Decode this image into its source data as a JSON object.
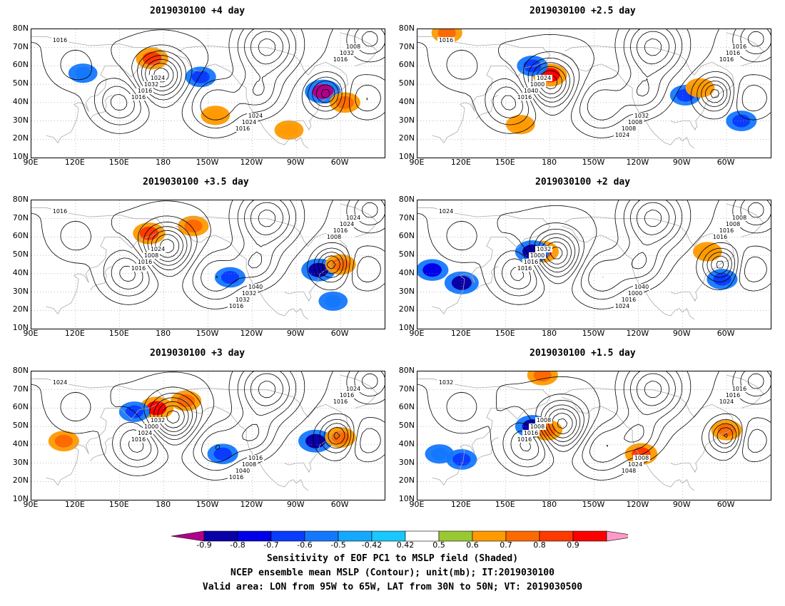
{
  "panels": [
    {
      "title": "2019030100 +4 day",
      "isobar_labels": [
        "1016",
        "1024",
        "1024",
        "1008",
        "1032",
        "1024",
        "1032",
        "1016",
        "1016",
        "1016",
        "1016"
      ],
      "shading": [
        {
          "lon": 172,
          "lat": 64,
          "v": 0.7
        },
        {
          "lon": 205,
          "lat": 54,
          "v": -0.6
        },
        {
          "lon": 288,
          "lat": 46,
          "v": -0.9
        },
        {
          "lon": 303,
          "lat": 40,
          "v": 0.6
        },
        {
          "lon": 265,
          "lat": 25,
          "v": 0.5
        },
        {
          "lon": 125,
          "lat": 56,
          "v": -0.5
        },
        {
          "lon": 215,
          "lat": 33,
          "v": 0.5
        }
      ]
    },
    {
      "title": "2019030100 +2.5 day",
      "isobar_labels": [
        "1016",
        "1024",
        "1032",
        "1016",
        "1000",
        "1008",
        "1016",
        "1040",
        "1008",
        "1016",
        "1016",
        "1024"
      ],
      "shading": [
        {
          "lon": 180,
          "lat": 55,
          "v": 0.8
        },
        {
          "lon": 168,
          "lat": 60,
          "v": -0.6
        },
        {
          "lon": 110,
          "lat": 78,
          "v": 0.6
        },
        {
          "lon": 272,
          "lat": 44,
          "v": -0.6
        },
        {
          "lon": 282,
          "lat": 48,
          "v": 0.5
        },
        {
          "lon": 310,
          "lat": 30,
          "v": -0.6
        },
        {
          "lon": 160,
          "lat": 28,
          "v": 0.5
        }
      ]
    },
    {
      "title": "2019030100 +3.5 day",
      "isobar_labels": [
        "1016",
        "1024",
        "1040",
        "1024",
        "1008",
        "1032",
        "1024",
        "1016",
        "1032",
        "1016",
        "1016",
        "1016",
        "1008"
      ],
      "shading": [
        {
          "lon": 170,
          "lat": 62,
          "v": 0.7
        },
        {
          "lon": 200,
          "lat": 66,
          "v": 0.6
        },
        {
          "lon": 285,
          "lat": 42,
          "v": -0.8
        },
        {
          "lon": 225,
          "lat": 38,
          "v": -0.6
        },
        {
          "lon": 300,
          "lat": 45,
          "v": 0.6
        },
        {
          "lon": 295,
          "lat": 25,
          "v": -0.5
        }
      ]
    },
    {
      "title": "2019030100 +2 day",
      "isobar_labels": [
        "1024",
        "1032",
        "1040",
        "1008",
        "1000",
        "1000",
        "1008",
        "1016",
        "1016",
        "1016",
        "1016",
        "1024",
        "1016"
      ],
      "shading": [
        {
          "lon": 175,
          "lat": 52,
          "v": 0.7
        },
        {
          "lon": 168,
          "lat": 52,
          "v": -0.8
        },
        {
          "lon": 120,
          "lat": 35,
          "v": -0.8
        },
        {
          "lon": 100,
          "lat": 42,
          "v": -0.7
        },
        {
          "lon": 287,
          "lat": 52,
          "v": 0.5
        },
        {
          "lon": 297,
          "lat": 37,
          "v": -0.6
        }
      ]
    },
    {
      "title": "2019030100 +3 day",
      "isobar_labels": [
        "1024",
        "1032",
        "1016",
        "1024",
        "1000",
        "1008",
        "1016",
        "1024",
        "1040",
        "1016",
        "1016",
        "1016"
      ],
      "shading": [
        {
          "lon": 175,
          "lat": 60,
          "v": 0.8
        },
        {
          "lon": 160,
          "lat": 58,
          "v": -0.6
        },
        {
          "lon": 195,
          "lat": 64,
          "v": 0.6
        },
        {
          "lon": 220,
          "lat": 35,
          "v": -0.6
        },
        {
          "lon": 283,
          "lat": 42,
          "v": -0.8
        },
        {
          "lon": 300,
          "lat": 44,
          "v": 0.6
        },
        {
          "lon": 112,
          "lat": 42,
          "v": 0.6
        }
      ]
    },
    {
      "title": "2019030100 +1.5 day",
      "isobar_labels": [
        "1032",
        "1008",
        "1008",
        "1016",
        "1008",
        "1024",
        "1016",
        "1016",
        "1048",
        "1024",
        "1016"
      ],
      "shading": [
        {
          "lon": 168,
          "lat": 50,
          "v": -0.8
        },
        {
          "lon": 178,
          "lat": 48,
          "v": 0.6
        },
        {
          "lon": 120,
          "lat": 32,
          "v": -0.6
        },
        {
          "lon": 105,
          "lat": 35,
          "v": -0.5
        },
        {
          "lon": 175,
          "lat": 78,
          "v": 0.6
        },
        {
          "lon": 242,
          "lat": 35,
          "v": 0.7
        },
        {
          "lon": 300,
          "lat": 48,
          "v": 0.6
        }
      ]
    }
  ],
  "lat_ticks": [
    "80N",
    "70N",
    "60N",
    "50N",
    "40N",
    "30N",
    "20N",
    "10N"
  ],
  "lon_ticks": [
    "90E",
    "120E",
    "150E",
    "180",
    "150W",
    "120W",
    "90W",
    "60W"
  ],
  "colorbar": {
    "labels": [
      "-0.9",
      "-0.8",
      "-0.7",
      "-0.6",
      "-0.5",
      "-0.42",
      "0.42",
      "0.5",
      "0.6",
      "0.7",
      "0.8",
      "0.9"
    ],
    "colors": [
      "#b0008a",
      "#0a00a8",
      "#0000e8",
      "#0a3cff",
      "#1478ff",
      "#14a8ff",
      "#18c8ff",
      "#ffffff",
      "#9ac832",
      "#ff9a00",
      "#ff6a00",
      "#ff3a00",
      "#ff0000",
      "#ff9ac8"
    ]
  },
  "caption": {
    "line1": "Sensitivity of EOF PC1 to MSLP field (Shaded)",
    "line2": "NCEP ensemble mean MSLP (Contour); unit(mb); IT:2019030100",
    "line3": "Valid area: LON from 95W to 65W, LAT from 30N to 50N; VT: 2019030500"
  }
}
